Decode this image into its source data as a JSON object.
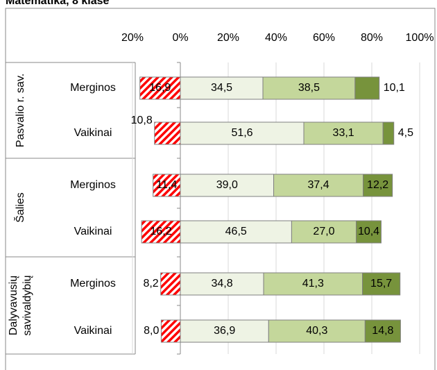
{
  "chart_data": {
    "type": "diverging-bar",
    "title": "Matematika, 8 klasė",
    "groups": [
      [
        "Pasvalio r. sav."
      ],
      [
        "Šalies"
      ],
      [
        "Dalyvavusių",
        "savivaldybių"
      ]
    ],
    "categories": [
      "Merginos",
      "Vaikinai",
      "Merginos",
      "Vaikinai",
      "Merginos",
      "Vaikinai"
    ],
    "xlim": [
      -20,
      100
    ],
    "xticks": [
      {
        "value": -20,
        "label": "20%"
      },
      {
        "value": 0,
        "label": "0%"
      },
      {
        "value": 20,
        "label": "20%"
      },
      {
        "value": 40,
        "label": "40%"
      },
      {
        "value": 60,
        "label": "60%"
      },
      {
        "value": 80,
        "label": "80%"
      },
      {
        "value": 100,
        "label": "100%"
      }
    ],
    "grid": true,
    "series": [
      {
        "color": "#ff0000",
        "values": [
          -16.9,
          -10.8,
          -11.4,
          -16.2,
          -8.2,
          -8.0
        ],
        "value_labels": [
          "16,9",
          "10,8",
          "11,4",
          "16,2",
          "8,2",
          "8,0"
        ]
      },
      {
        "color": "#eef3e4",
        "values": [
          34.5,
          51.6,
          39.0,
          46.5,
          34.8,
          36.9
        ],
        "value_labels": [
          "34,5",
          "51,6",
          "39,0",
          "46,5",
          "34,8",
          "36,9"
        ]
      },
      {
        "color": "#c4d79b",
        "values": [
          38.5,
          33.1,
          37.4,
          27.0,
          41.3,
          40.3
        ],
        "value_labels": [
          "38,5",
          "33,1",
          "37,4",
          "27,0",
          "41,3",
          "40,3"
        ]
      },
      {
        "color": "#77933c",
        "values": [
          10.1,
          4.5,
          12.2,
          10.4,
          15.7,
          14.8
        ],
        "value_labels": [
          "10,1",
          "4,5",
          "12,2",
          "10,4",
          "15,7",
          "14,8"
        ]
      }
    ]
  }
}
